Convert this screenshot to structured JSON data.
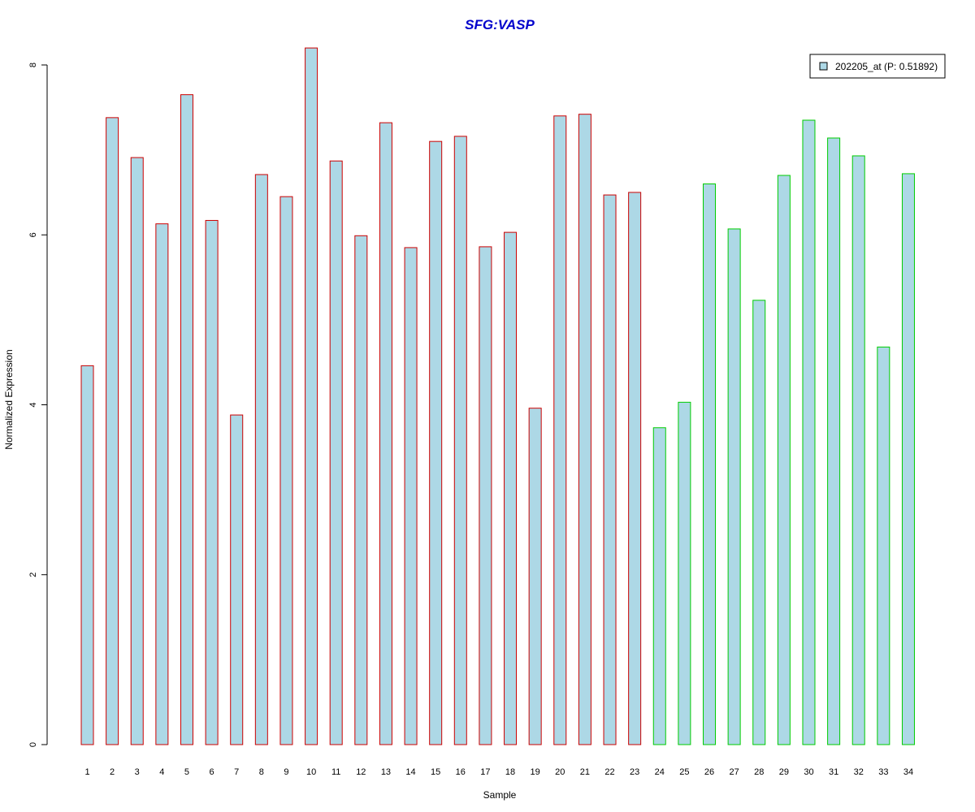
{
  "chart_data": {
    "type": "bar",
    "title": "SFG:VASP",
    "xlabel": "Sample",
    "ylabel": "Normalized Expression",
    "categories": [
      "1",
      "2",
      "3",
      "4",
      "5",
      "6",
      "7",
      "8",
      "9",
      "10",
      "11",
      "12",
      "13",
      "14",
      "15",
      "16",
      "17",
      "18",
      "19",
      "20",
      "21",
      "22",
      "23",
      "24",
      "25",
      "26",
      "27",
      "28",
      "29",
      "30",
      "31",
      "32",
      "33",
      "34"
    ],
    "series": [
      {
        "name": "202205_at (P: 0.51892)",
        "values": [
          4.46,
          7.38,
          6.91,
          6.13,
          7.65,
          6.17,
          3.88,
          6.71,
          6.45,
          8.2,
          6.87,
          5.99,
          7.32,
          5.85,
          7.1,
          7.16,
          5.86,
          6.03,
          3.96,
          7.4,
          7.42,
          6.47,
          6.5,
          3.73,
          4.03,
          6.6,
          6.07,
          5.23,
          6.7,
          7.35,
          7.14,
          6.93,
          4.68,
          6.72
        ]
      }
    ],
    "groups": [
      {
        "samples": "1-23",
        "border_color": "#cc0000"
      },
      {
        "samples": "24-34",
        "border_color": "#00cc00"
      }
    ],
    "bar_fill": "#add8e6",
    "title_color": "#0000cc",
    "yticks": [
      0,
      2,
      4,
      6,
      8
    ],
    "ylim": [
      0,
      8.2
    ],
    "grid": false,
    "legend_position": "top-right"
  }
}
